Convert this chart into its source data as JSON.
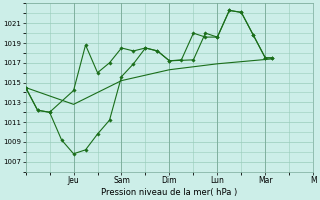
{
  "xlabel": "Pression niveau de la mer( hPa )",
  "bg_color": "#cceee8",
  "grid_color": "#99ccbb",
  "line_color": "#1a6e1a",
  "ylim": [
    1006.0,
    1023.0
  ],
  "yticks": [
    1007,
    1009,
    1011,
    1013,
    1015,
    1017,
    1019,
    1021
  ],
  "xlim": [
    0,
    12
  ],
  "vlines_x": [
    2,
    4,
    6,
    8,
    10,
    12
  ],
  "vlines_labels": [
    "Jeu",
    "Sam",
    "Dim",
    "Lun",
    "Mar",
    "M"
  ],
  "line1_x": [
    0.0,
    0.5,
    1.0,
    2.0,
    2.5,
    3.0,
    3.5,
    4.0,
    4.5,
    5.0,
    5.5,
    6.0,
    7.0,
    7.5,
    8.0,
    8.5,
    9.0,
    9.5,
    10.0,
    10.3
  ],
  "line1_y": [
    1014.5,
    1012.2,
    1012.0,
    1014.2,
    1018.8,
    1016.0,
    1017.0,
    1018.5,
    1018.2,
    1018.5,
    1018.2,
    1017.2,
    1017.3,
    1020.0,
    1019.6,
    1022.3,
    1022.1,
    1019.8,
    1017.5,
    1017.5
  ],
  "line2_x": [
    0.0,
    0.5,
    1.0,
    1.5,
    2.0,
    2.5,
    3.0,
    3.5,
    4.0,
    4.5,
    5.0,
    5.5,
    6.0,
    6.5,
    7.0,
    7.5,
    8.0,
    8.5,
    9.0,
    9.5,
    10.0,
    10.3
  ],
  "line2_y": [
    1014.5,
    1012.2,
    1012.0,
    1009.2,
    1007.8,
    1008.2,
    1009.8,
    1011.2,
    1015.6,
    1016.9,
    1018.5,
    1018.2,
    1017.2,
    1017.3,
    1020.0,
    1019.6,
    1019.6,
    1022.3,
    1022.1,
    1019.8,
    1017.5,
    1017.5
  ],
  "line3_x": [
    0.0,
    2.0,
    4.0,
    6.0,
    8.0,
    10.3
  ],
  "line3_y": [
    1014.5,
    1012.8,
    1015.2,
    1016.3,
    1016.9,
    1017.4
  ]
}
